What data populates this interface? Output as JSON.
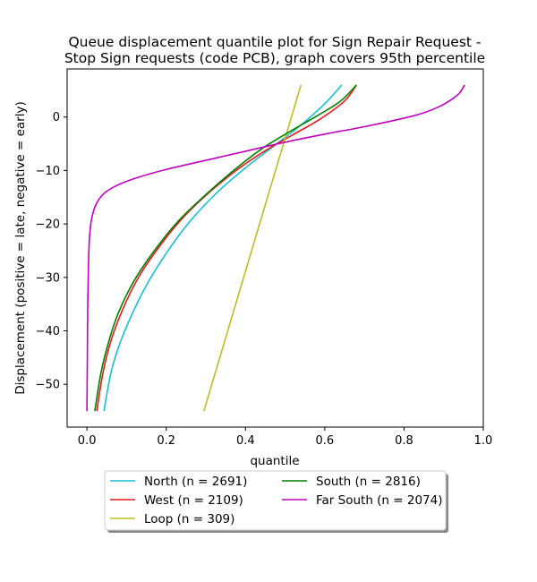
{
  "chart_data": {
    "type": "line",
    "title_lines": [
      "Queue displacement quantile plot for Sign Repair Request -",
      "Stop Sign  requests (code PCB), graph covers 95th percentile"
    ],
    "xlabel": "quantile",
    "ylabel": "Displacement (positive = late, negative = early)",
    "xlim": [
      -0.05,
      1.0
    ],
    "ylim": [
      -58,
      9
    ],
    "xticks": [
      0.0,
      0.2,
      0.4,
      0.6,
      0.8,
      1.0
    ],
    "xtick_labels": [
      "0.0",
      "0.2",
      "0.4",
      "0.6",
      "0.8",
      "1.0"
    ],
    "yticks": [
      -50,
      -40,
      -30,
      -20,
      -10,
      0
    ],
    "ytick_labels": [
      "−50",
      "−40",
      "−30",
      "−20",
      "−10",
      "0"
    ],
    "grid": false,
    "legend_placement": "below plot, two columns",
    "series": [
      {
        "name": "North (n = 2691)",
        "color": "#17becf",
        "x": [
          0.043,
          0.06,
          0.08,
          0.11,
          0.15,
          0.2,
          0.26,
          0.33,
          0.4,
          0.47,
          0.54,
          0.6,
          0.643
        ],
        "y": [
          -55,
          -48,
          -43,
          -37.5,
          -31.5,
          -25.5,
          -19.5,
          -14,
          -9.5,
          -5.5,
          -1.5,
          2.5,
          6
        ]
      },
      {
        "name": "West (n = 2109)",
        "color": "#e41a1c",
        "x": [
          0.025,
          0.04,
          0.06,
          0.09,
          0.13,
          0.18,
          0.24,
          0.31,
          0.38,
          0.45,
          0.52,
          0.59,
          0.65,
          0.68
        ],
        "y": [
          -55,
          -48,
          -42,
          -36,
          -30,
          -24.5,
          -19,
          -14,
          -9.8,
          -6.3,
          -3.3,
          -0.3,
          3,
          6
        ]
      },
      {
        "name": "Loop (n = 309)",
        "color": "#bcbd22",
        "x": [
          0.295,
          0.54
        ],
        "y": [
          -55,
          6
        ]
      },
      {
        "name": "South (n = 2816)",
        "color": "#008000",
        "x": [
          0.02,
          0.035,
          0.055,
          0.08,
          0.12,
          0.17,
          0.23,
          0.3,
          0.37,
          0.44,
          0.51,
          0.58,
          0.64,
          0.68
        ],
        "y": [
          -55,
          -48,
          -42,
          -36.5,
          -30.5,
          -25,
          -19.5,
          -14.5,
          -10,
          -6,
          -2.8,
          0.2,
          3,
          6
        ]
      },
      {
        "name": "Far South (n = 2074)",
        "color": "#bf00bf",
        "x": [
          0.0,
          0.001,
          0.002,
          0.004,
          0.007,
          0.012,
          0.022,
          0.04,
          0.07,
          0.12,
          0.2,
          0.3,
          0.4,
          0.5,
          0.6,
          0.7,
          0.8,
          0.85,
          0.89,
          0.92,
          0.94,
          0.953
        ],
        "y": [
          -55,
          -45,
          -35,
          -27,
          -22,
          -19,
          -16.5,
          -14.5,
          -13,
          -11.5,
          -9.8,
          -8.1,
          -6.4,
          -4.7,
          -3.2,
          -1.8,
          -0.2,
          0.8,
          2,
          3.3,
          4.5,
          6
        ]
      }
    ]
  }
}
